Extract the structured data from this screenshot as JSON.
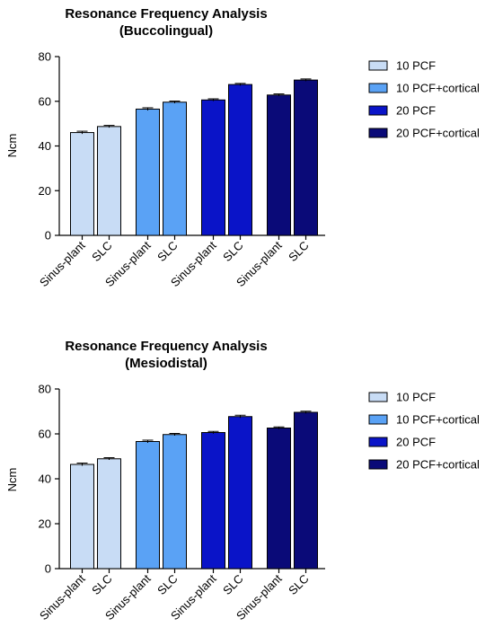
{
  "chart_data": [
    {
      "type": "bar",
      "title": "Resonance Frequency Analysis",
      "subtitle": "(Buccolingual)",
      "ylabel": "Ncm",
      "ylim": [
        0,
        80
      ],
      "yticks": [
        0,
        20,
        40,
        60,
        80
      ],
      "legend_position": "right",
      "categories": [
        "Sinus-plant",
        "SLC",
        "Sinus-plant",
        "SLC",
        "Sinus-plant",
        "SLC",
        "Sinus-plant",
        "SLC"
      ],
      "groups": [
        {
          "name": "10 PCF",
          "color": "#c8dcf5",
          "values": [
            46,
            48.7
          ],
          "errors": [
            0.6,
            0.5
          ]
        },
        {
          "name": "10 PCF+cortical",
          "color": "#5aa2f5",
          "values": [
            56.5,
            59.6
          ],
          "errors": [
            0.6,
            0.5
          ]
        },
        {
          "name": "20 PCF",
          "color": "#0a14c8",
          "values": [
            60.6,
            67.5
          ],
          "errors": [
            0.5,
            0.5
          ]
        },
        {
          "name": "20 PCF+cortical",
          "color": "#0a0a78",
          "values": [
            62.8,
            69.5
          ],
          "errors": [
            0.5,
            0.5
          ]
        }
      ]
    },
    {
      "type": "bar",
      "title": "Resonance Frequency Analysis",
      "subtitle": "(Mesiodistal)",
      "ylabel": "Ncm",
      "ylim": [
        0,
        80
      ],
      "yticks": [
        0,
        20,
        40,
        60,
        80
      ],
      "legend_position": "right",
      "categories": [
        "Sinus-plant",
        "SLC",
        "Sinus-plant",
        "SLC",
        "Sinus-plant",
        "SLC",
        "Sinus-plant",
        "SLC"
      ],
      "groups": [
        {
          "name": "10 PCF",
          "color": "#c8dcf5",
          "values": [
            46.4,
            48.9
          ],
          "errors": [
            0.6,
            0.5
          ]
        },
        {
          "name": "10 PCF+cortical",
          "color": "#5aa2f5",
          "values": [
            56.6,
            59.7
          ],
          "errors": [
            0.6,
            0.5
          ]
        },
        {
          "name": "20 PCF",
          "color": "#0a14c8",
          "values": [
            60.6,
            67.7
          ],
          "errors": [
            0.5,
            0.6
          ]
        },
        {
          "name": "20 PCF+cortical",
          "color": "#0a0a78",
          "values": [
            62.6,
            69.6
          ],
          "errors": [
            0.5,
            0.5
          ]
        }
      ]
    }
  ]
}
